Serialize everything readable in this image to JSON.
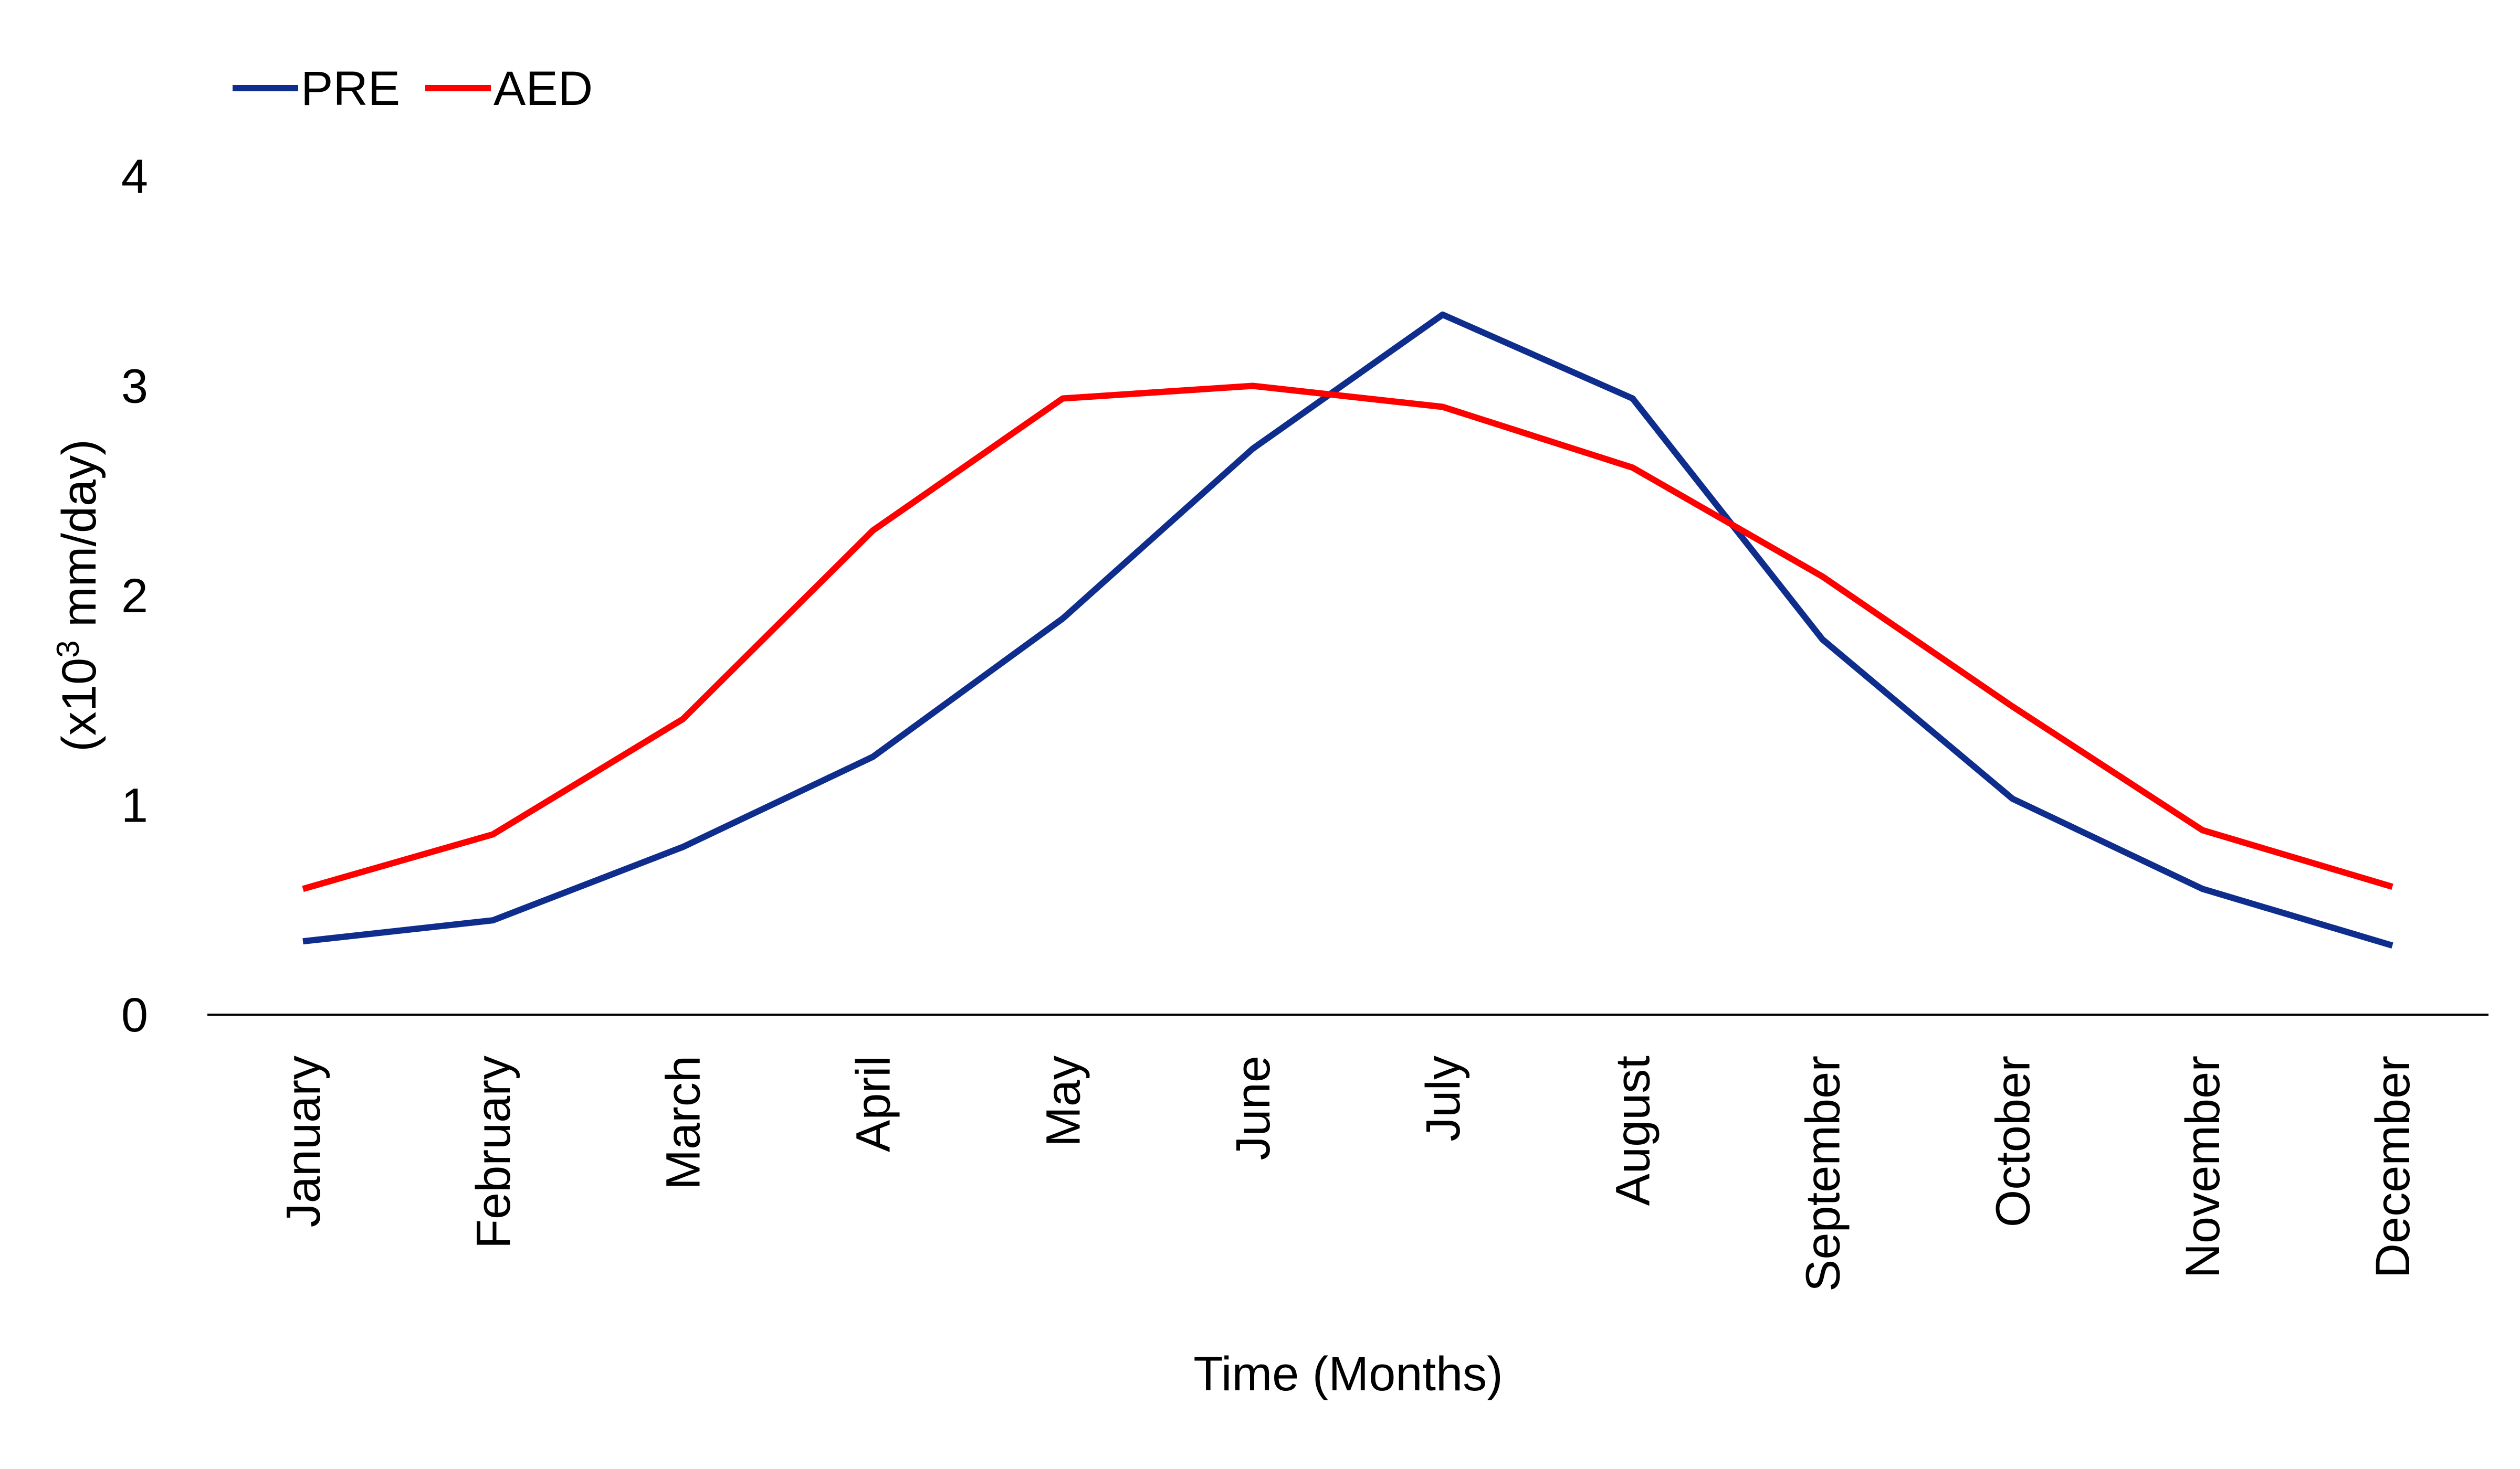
{
  "chart_data": {
    "type": "line",
    "categories": [
      "January",
      "February",
      "March",
      "April",
      "May",
      "June",
      "July",
      "August",
      "September",
      "October",
      "November",
      "December"
    ],
    "series": [
      {
        "name": "PRE",
        "color": "#0E2D8C",
        "values": [
          0.35,
          0.45,
          0.8,
          1.23,
          1.89,
          2.7,
          3.34,
          2.94,
          1.79,
          1.03,
          0.6,
          0.33
        ]
      },
      {
        "name": "AED",
        "color": "#FF0000",
        "values": [
          0.6,
          0.86,
          1.41,
          2.31,
          2.94,
          3.0,
          2.9,
          2.61,
          2.09,
          1.47,
          0.88,
          0.61
        ]
      }
    ],
    "ylim": [
      0,
      4
    ],
    "yticks": [
      "0",
      "1",
      "2",
      "3",
      "4"
    ],
    "xlabel": "Time (Months)",
    "ylabel": {
      "prefix": "(x10",
      "superscript": "3",
      "suffix": " mm/day)"
    },
    "legend_position": "top-left",
    "grid": false
  }
}
